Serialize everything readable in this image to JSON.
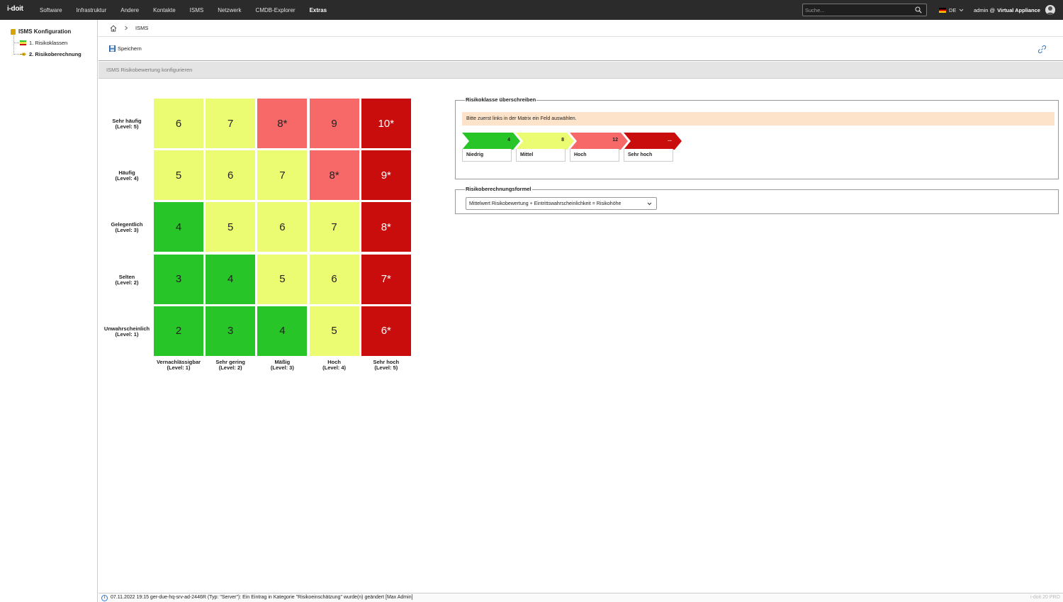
{
  "topnav": {
    "logo": "i-doit",
    "items": [
      "Software",
      "Infrastruktur",
      "Andere",
      "Kontakte",
      "ISMS",
      "Netzwerk",
      "CMDB-Explorer",
      "Extras"
    ],
    "active": "Extras",
    "search_placeholder": "Suche...",
    "language": "DE",
    "user_name": "admin @",
    "user_host": "Virtual Appliance"
  },
  "sidebar": {
    "root": "ISMS Konfiguration",
    "items": [
      {
        "label": "1. Risikoklassen",
        "active": false
      },
      {
        "label": "2. Risikoberechnung",
        "active": true
      }
    ]
  },
  "breadcrumb": {
    "current": "ISMS"
  },
  "toolbar": {
    "save_label": "Speichern"
  },
  "section": {
    "title": "ISMS Risikobewertung konfigurieren"
  },
  "matrix": {
    "rows": [
      {
        "name": "Sehr häufig",
        "level": "(Level: 5)",
        "cells": [
          {
            "v": "6",
            "c": "yellow"
          },
          {
            "v": "7",
            "c": "yellow"
          },
          {
            "v": "8*",
            "c": "lightred"
          },
          {
            "v": "9",
            "c": "lightred"
          },
          {
            "v": "10*",
            "c": "red"
          }
        ]
      },
      {
        "name": "Häufig",
        "level": "(Level: 4)",
        "cells": [
          {
            "v": "5",
            "c": "yellow"
          },
          {
            "v": "6",
            "c": "yellow"
          },
          {
            "v": "7",
            "c": "yellow"
          },
          {
            "v": "8*",
            "c": "lightred"
          },
          {
            "v": "9*",
            "c": "red"
          }
        ]
      },
      {
        "name": "Gelegentlich",
        "level": "(Level: 3)",
        "cells": [
          {
            "v": "4",
            "c": "green"
          },
          {
            "v": "5",
            "c": "yellow"
          },
          {
            "v": "6",
            "c": "yellow"
          },
          {
            "v": "7",
            "c": "yellow"
          },
          {
            "v": "8*",
            "c": "red"
          }
        ]
      },
      {
        "name": "Selten",
        "level": "(Level: 2)",
        "cells": [
          {
            "v": "3",
            "c": "green"
          },
          {
            "v": "4",
            "c": "green"
          },
          {
            "v": "5",
            "c": "yellow"
          },
          {
            "v": "6",
            "c": "yellow"
          },
          {
            "v": "7*",
            "c": "red"
          }
        ]
      },
      {
        "name": "Unwahrscheinlich",
        "level": "(Level: 1)",
        "cells": [
          {
            "v": "2",
            "c": "green"
          },
          {
            "v": "3",
            "c": "green"
          },
          {
            "v": "4",
            "c": "green"
          },
          {
            "v": "5",
            "c": "yellow"
          },
          {
            "v": "6*",
            "c": "red"
          }
        ]
      }
    ],
    "columns": [
      {
        "name": "Vernachlässigbar",
        "level": "(Level: 1)"
      },
      {
        "name": "Sehr gering",
        "level": "(Level: 2)"
      },
      {
        "name": "Mäßig",
        "level": "(Level: 3)"
      },
      {
        "name": "Hoch",
        "level": "(Level: 4)"
      },
      {
        "name": "Sehr hoch",
        "level": "(Level: 5)"
      }
    ]
  },
  "colors": {
    "green": "#27c527",
    "yellow": "#ecfc72",
    "lightred": "#f76868",
    "red": "#c90d0d",
    "hint_bg": "#fde3c9"
  },
  "risk_classes": {
    "legend": "Risikoklasse überschreiben",
    "hint": "Bitte zuerst links in der Matrix ein Feld auswählen.",
    "classes": [
      {
        "name": "Niedrig",
        "value": "4",
        "color": "green"
      },
      {
        "name": "Mittel",
        "value": "8",
        "color": "yellow"
      },
      {
        "name": "Hoch",
        "value": "12",
        "color": "lightred"
      },
      {
        "name": "Sehr hoch",
        "value": "...",
        "color": "red"
      }
    ]
  },
  "formula": {
    "legend": "Risikoberechnungsformel",
    "selected": "Mittelwert Risikobewertung + Eintrittswahrscheinlichkeit = Risikohöhe"
  },
  "status": {
    "message": "07.11.2022 19:15 ger-due-hq-srv-ad-2446R (Typ: \"Server\"): Ein Eintrag in Kategorie \"Risikoeinschätzung\" wurde(n) geändert [Max Admin]",
    "version": "i-doit 20 PRO"
  }
}
